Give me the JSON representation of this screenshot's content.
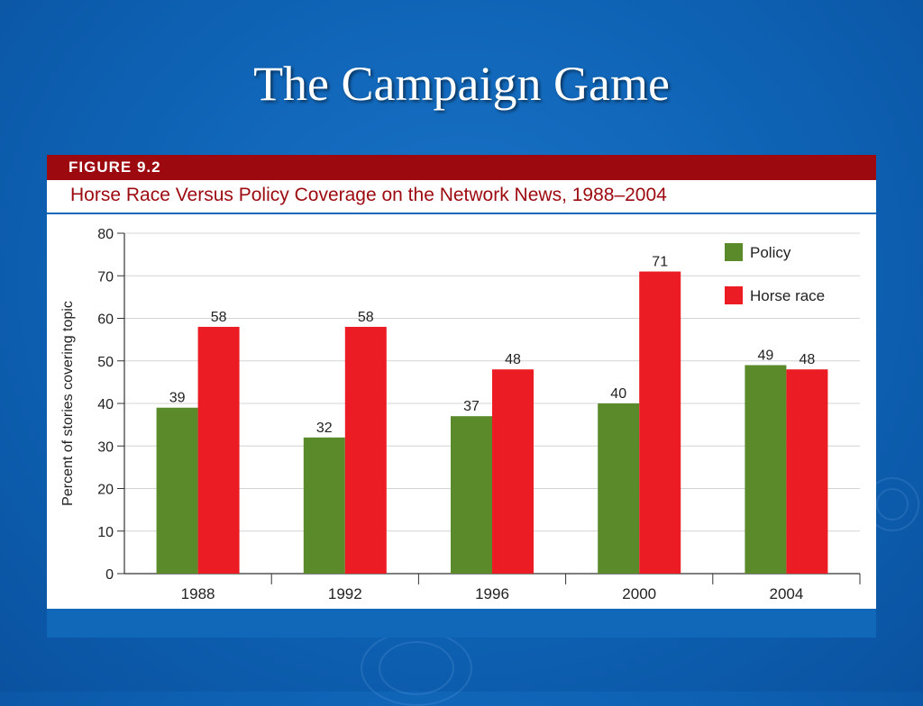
{
  "slide": {
    "title": "The Campaign Game"
  },
  "figure": {
    "label": "FIGURE 9.2",
    "title": "Horse Race Versus Policy Coverage on the Network News, 1988–2004"
  },
  "colors": {
    "policy": "#5a8a2a",
    "horse_race": "#ec1c24",
    "header": "#9c0a10",
    "background": "#0e62b4"
  },
  "chart_data": {
    "type": "bar",
    "categories": [
      "1988",
      "1992",
      "1996",
      "2000",
      "2004"
    ],
    "series": [
      {
        "name": "Policy",
        "values": [
          39,
          32,
          37,
          40,
          49
        ],
        "color": "#5a8a2a"
      },
      {
        "name": "Horse race",
        "values": [
          58,
          58,
          48,
          71,
          48
        ],
        "color": "#ec1c24"
      }
    ],
    "ylabel": "Percent of stories covering topic",
    "xlabel": "",
    "ylim": [
      0,
      80
    ],
    "yticks": [
      0,
      10,
      20,
      30,
      40,
      50,
      60,
      70,
      80
    ],
    "grid": true,
    "legend": "top-right"
  }
}
